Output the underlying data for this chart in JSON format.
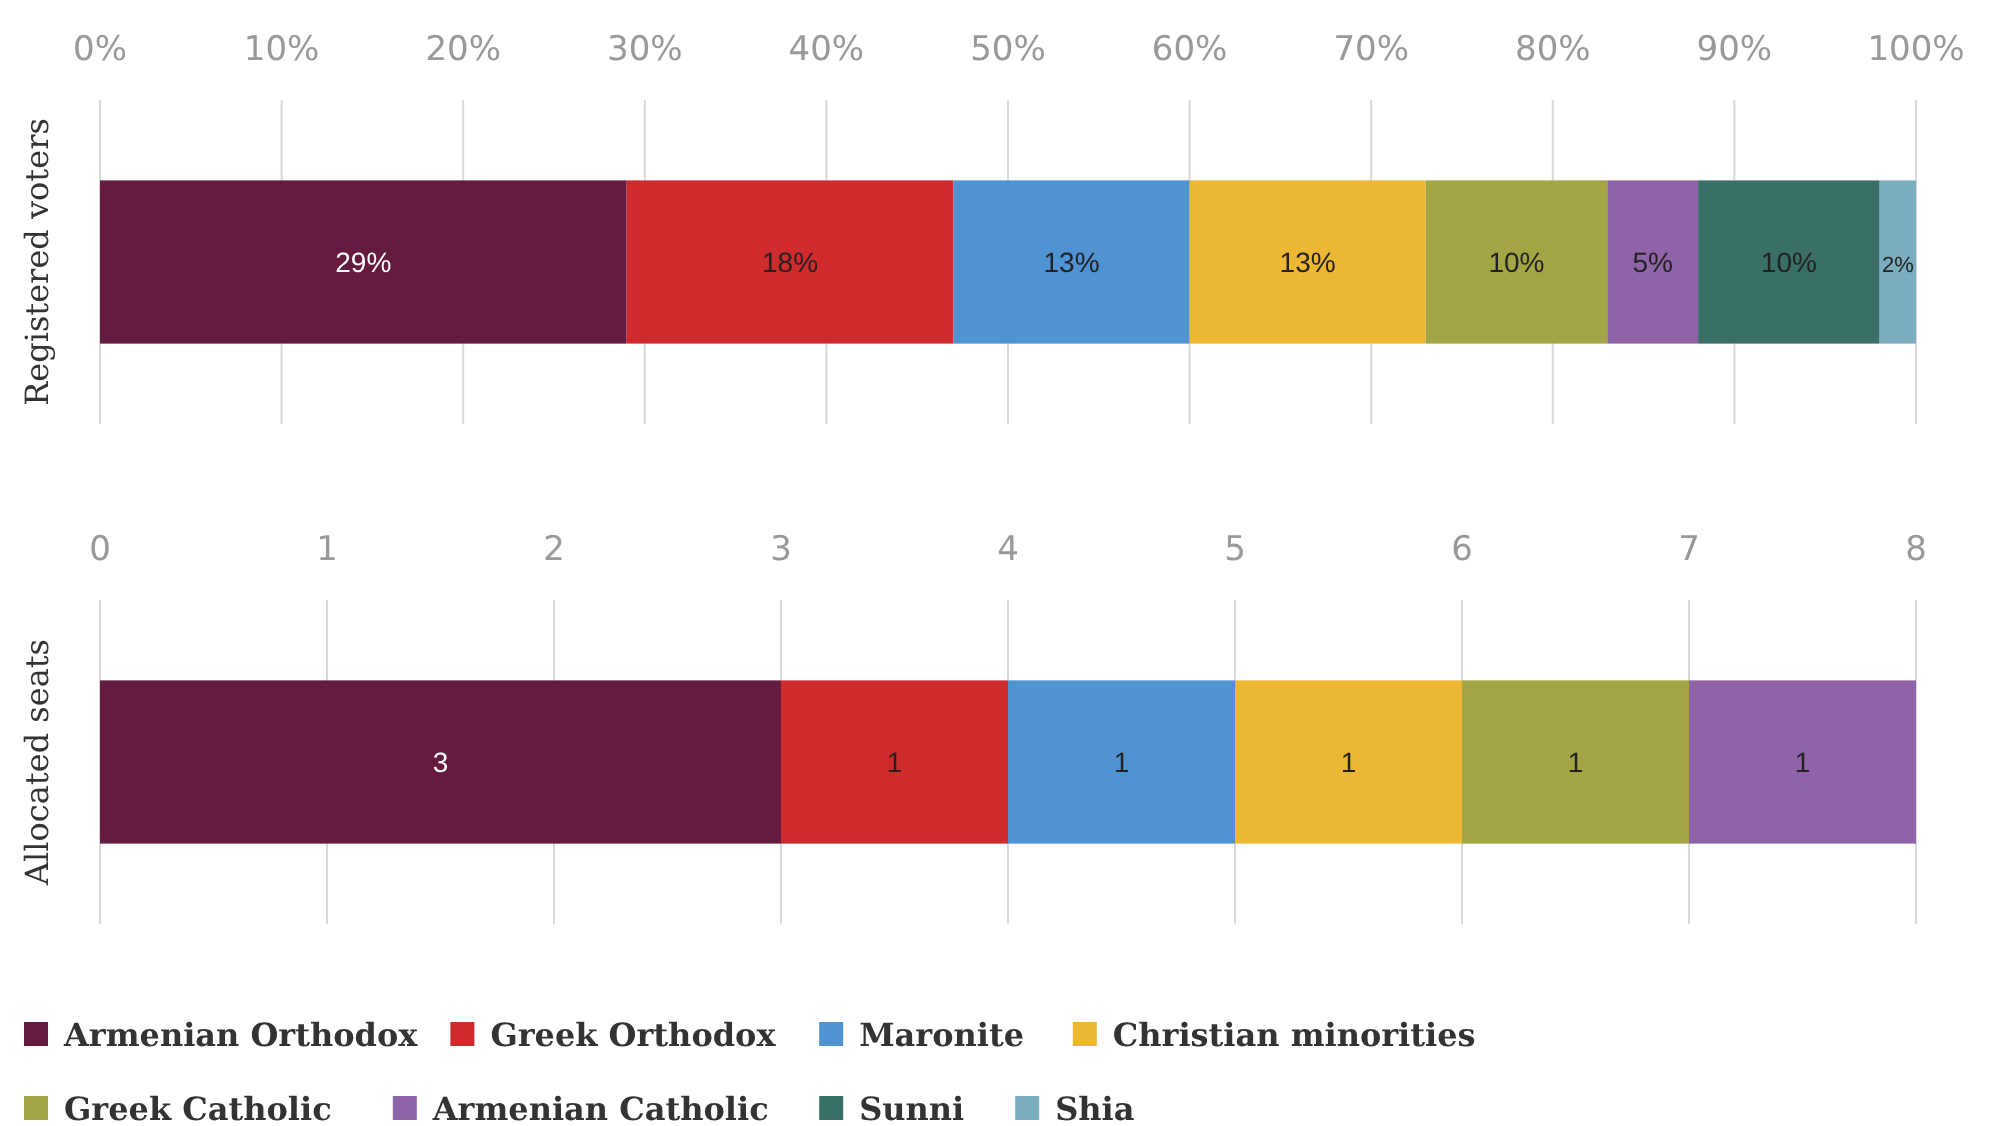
{
  "chart_data": [
    {
      "type": "bar",
      "orientation": "horizontal",
      "stacked": true,
      "ylabel": "Registered voters",
      "categories": [
        null
      ],
      "xlim": [
        0,
        100
      ],
      "xticks": [
        {
          "value": 0,
          "label": "0%"
        },
        {
          "value": 10,
          "label": "10%"
        },
        {
          "value": 20,
          "label": "20%"
        },
        {
          "value": 30,
          "label": "30%"
        },
        {
          "value": 40,
          "label": "40%"
        },
        {
          "value": 50,
          "label": "50%"
        },
        {
          "value": 60,
          "label": "60%"
        },
        {
          "value": 70,
          "label": "70%"
        },
        {
          "value": 80,
          "label": "80%"
        },
        {
          "value": 90,
          "label": "90%"
        },
        {
          "value": 100,
          "label": "100%"
        }
      ],
      "grid": "x",
      "legend": "bottom",
      "series": [
        {
          "name": "Armenian Orthodox",
          "color": "#651a3f",
          "values": [
            29
          ],
          "value_labels": [
            "29%"
          ]
        },
        {
          "name": "Greek Orthodox",
          "color": "#cf2a2c",
          "values": [
            18
          ],
          "value_labels": [
            "18%"
          ]
        },
        {
          "name": "Maronite",
          "color": "#4f93d2",
          "values": [
            13
          ],
          "value_labels": [
            "13%"
          ]
        },
        {
          "name": "Christian minorities",
          "color": "#ecb733",
          "values": [
            13
          ],
          "value_labels": [
            "13%"
          ]
        },
        {
          "name": "Greek Catholic",
          "color": "#a3a545",
          "values": [
            10
          ],
          "value_labels": [
            "10%"
          ]
        },
        {
          "name": "Armenian Catholic",
          "color": "#8e63a8",
          "values": [
            5
          ],
          "value_labels": [
            "5%"
          ]
        },
        {
          "name": "Sunni",
          "color": "#3a6f68",
          "values": [
            10
          ],
          "value_labels": [
            "10%"
          ]
        },
        {
          "name": "Shia",
          "color": "#7aaebf",
          "values": [
            2
          ],
          "value_labels": [
            "2%"
          ]
        }
      ]
    },
    {
      "type": "bar",
      "orientation": "horizontal",
      "stacked": true,
      "ylabel": "Allocated seats",
      "categories": [
        null
      ],
      "xlim": [
        0,
        8
      ],
      "xticks": [
        0,
        1,
        2,
        3,
        4,
        5,
        6,
        7,
        8
      ],
      "grid": "x",
      "data_labels": true,
      "series": [
        {
          "color": "#651a3f",
          "values": [
            3
          ]
        },
        {
          "color": "#cf2a2c",
          "values": [
            1
          ]
        },
        {
          "color": "#4f93d2",
          "values": [
            1
          ]
        },
        {
          "color": "#ecb733",
          "values": [
            1
          ]
        },
        {
          "color": "#a3a545",
          "values": [
            1
          ]
        },
        {
          "color": "#8e63a8",
          "values": [
            1
          ]
        }
      ]
    }
  ]
}
